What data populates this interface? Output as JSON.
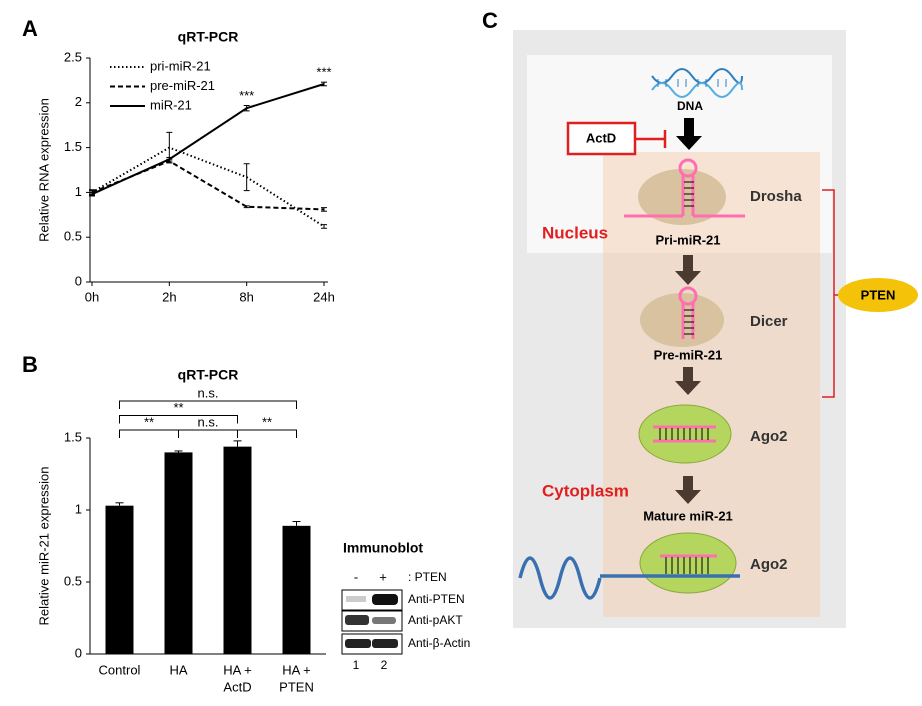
{
  "panel_labels": [
    "A",
    "B",
    "C"
  ],
  "chart_data": [
    {
      "type": "line",
      "title": "qRT-PCR",
      "y_label": "Relative RNA expression",
      "categories": [
        "0h",
        "2h",
        "8h",
        "24h"
      ],
      "ylim": [
        0,
        2.5
      ],
      "yticks": [
        0,
        0.5,
        1,
        1.5,
        2,
        2.5
      ],
      "series": [
        {
          "name": "pri-miR-21",
          "color": "#000000",
          "line_style": "dotted",
          "values": [
            1.0,
            1.5,
            1.17,
            0.62
          ],
          "errors": [
            0.03,
            0.17,
            0.15,
            0.02
          ]
        },
        {
          "name": "pre-miR-21",
          "color": "#000000",
          "line_style": "dashed",
          "values": [
            1.0,
            1.35,
            0.84,
            0.81
          ],
          "errors": [
            0.02,
            0.02,
            0.01,
            0.02
          ]
        },
        {
          "name": "miR-21",
          "color": "#000000",
          "line_style": "solid",
          "values": [
            0.98,
            1.37,
            1.94,
            2.21
          ],
          "errors": [
            0.02,
            0.02,
            0.03,
            0.02
          ],
          "significance": [
            null,
            null,
            "***",
            "***"
          ]
        }
      ]
    },
    {
      "type": "bar",
      "title": "qRT-PCR",
      "y_label": "Relative miR-21 expression",
      "categories": [
        [
          "Control"
        ],
        [
          "HA"
        ],
        [
          "HA +",
          "ActD"
        ],
        [
          "HA +",
          "PTEN"
        ]
      ],
      "values": [
        1.03,
        1.4,
        1.44,
        0.89
      ],
      "errors": [
        0.02,
        0.01,
        0.04,
        0.03
      ],
      "color": "#000000",
      "ylim": [
        0,
        1.5
      ],
      "yticks": [
        0,
        0.5,
        1,
        1.5
      ],
      "comparisons": [
        {
          "pair": [
            0,
            1
          ],
          "label": "**"
        },
        {
          "pair": [
            1,
            2
          ],
          "label": "n.s."
        },
        {
          "pair": [
            2,
            3
          ],
          "label": "**"
        },
        {
          "pair": [
            0,
            2
          ],
          "label": "**"
        },
        {
          "pair": [
            0,
            3
          ],
          "label": "n.s."
        }
      ]
    }
  ],
  "immunoblot": {
    "title": "Immunoblot",
    "lanes": [
      "-",
      "+"
    ],
    "condition": ": PTEN",
    "antibodies": [
      "Anti-PTEN",
      "Anti-pAKT",
      "Anti-β-Actin"
    ],
    "lane_numbers": [
      "1",
      "2"
    ]
  },
  "diagram": {
    "dna": "DNA",
    "inhibitor": "ActD",
    "drosha": "Drosha",
    "nucleus": "Nucleus",
    "pri": "Pri-miR-21",
    "dicer": "Dicer",
    "pre": "Pre-miR-21",
    "regulator": "PTEN",
    "ago2_top": "Ago2",
    "cytoplasm": "Cytoplasm",
    "mature": "Mature miR-21",
    "ago2_bottom": "Ago2"
  }
}
